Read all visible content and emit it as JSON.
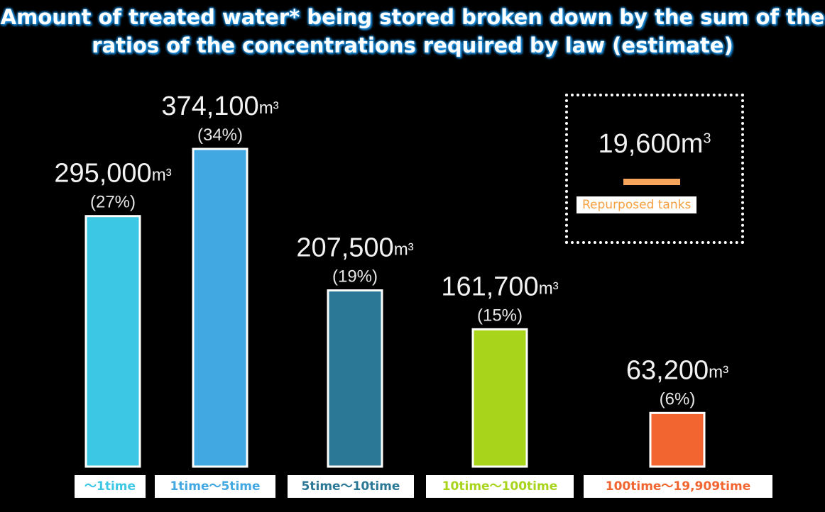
{
  "chart_data": {
    "type": "bar",
    "title": "Amount of treated water* being stored broken down by the sum of the ratios of the concentrations required by law (estimate)",
    "unit": "m³",
    "categories": [
      "〜1time",
      "1time〜5time",
      "5time〜10time",
      "10time〜100time",
      "100time〜19,909time"
    ],
    "values": [
      295000,
      374100,
      207500,
      161700,
      63200
    ],
    "value_labels": [
      "295,000",
      "374,100",
      "207,500",
      "161,700",
      "63,200"
    ],
    "percent_labels": [
      "(27%)",
      "(34%)",
      "(19%)",
      "(15%)",
      "(6%)"
    ],
    "colors": [
      "#3cc8e4",
      "#42a8e2",
      "#2a7896",
      "#a8d41c",
      "#f26430"
    ],
    "ylim": [
      0,
      374100
    ],
    "grid": false,
    "inset": {
      "value_label": "19,600",
      "value": 19600,
      "label": "Repurposed tanks",
      "color": "#f7a55a"
    }
  }
}
